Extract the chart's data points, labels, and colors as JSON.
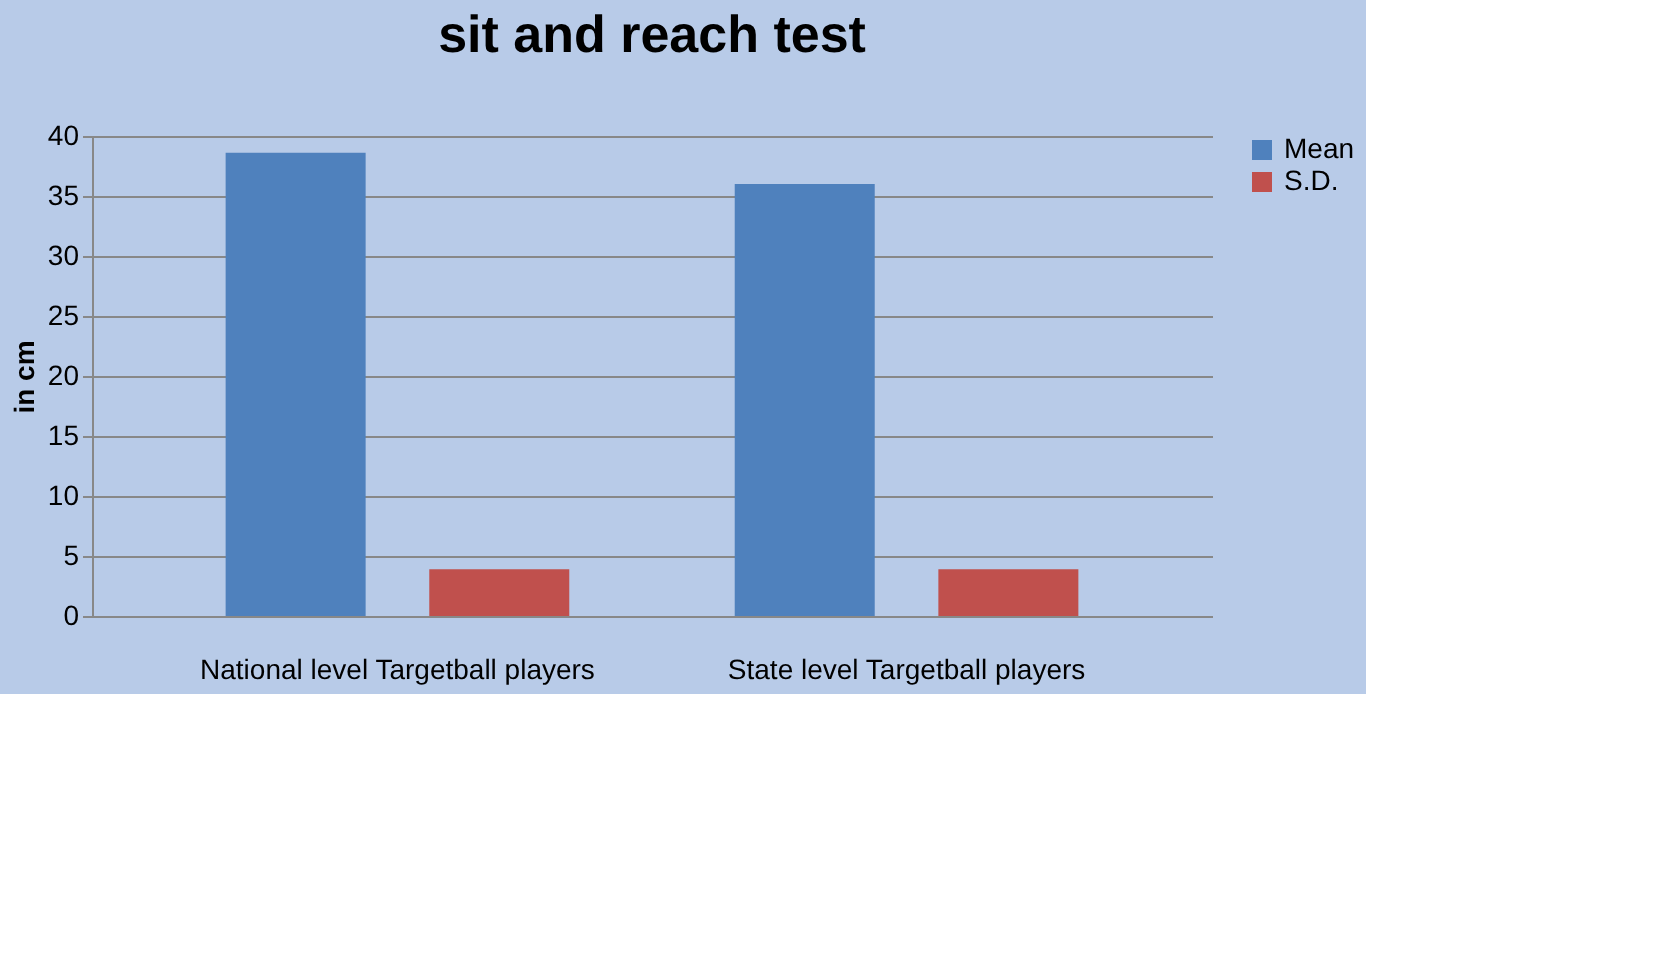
{
  "chart_data": {
    "type": "bar",
    "title": "sit and reach test",
    "ylabel": "in cm",
    "categories": [
      "National level Targetball players",
      "State level Targetball players"
    ],
    "series": [
      {
        "name": "Mean",
        "color": "#4f81bd",
        "values": [
          38.6,
          36
        ]
      },
      {
        "name": "S.D.",
        "color": "#c0504d",
        "values": [
          3.9,
          3.9
        ]
      }
    ],
    "ylim": [
      0,
      40
    ],
    "yticks": [
      0,
      5,
      10,
      15,
      20,
      25,
      30,
      35,
      40
    ],
    "grid": "y",
    "legend": "right"
  }
}
